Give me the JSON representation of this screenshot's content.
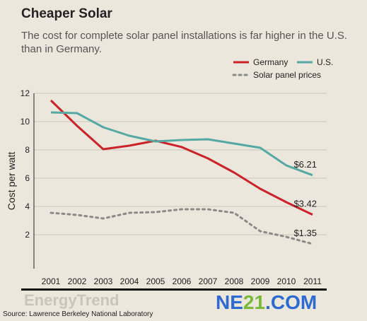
{
  "header": {
    "title": "Cheaper Solar",
    "subtitle": "The cost for complete solar panel installations is far higher in the U.S. than in Germany."
  },
  "source": "Source: Lawrence Berkeley National Laboratory",
  "watermarks": {
    "energytrend": "EnergyTrend",
    "ne21_prefix": "NE",
    "ne21_digits": "21",
    "ne21_suffix": ".COM"
  },
  "colors": {
    "germany": "#cc2229",
    "us": "#55a9a4",
    "panel": "#8a8a8a",
    "background": "#ebe7dc"
  },
  "chart_data": {
    "type": "line",
    "title": "Cheaper Solar",
    "ylabel": "Cost per watt",
    "xlabel": "",
    "x": [
      2001,
      2002,
      2003,
      2004,
      2005,
      2006,
      2007,
      2008,
      2009,
      2010,
      2011
    ],
    "x_tick_labels": [
      "2001",
      "2002",
      "2003",
      "2004",
      "2005",
      "2006",
      "2007",
      "2008",
      "2009",
      "2010",
      "2011"
    ],
    "ylim": [
      0,
      12
    ],
    "y_ticks": [
      2,
      4,
      6,
      8,
      10,
      12
    ],
    "y_tick_labels": [
      "2",
      "4",
      "6",
      "8",
      "10",
      "12"
    ],
    "grid": "horizontal",
    "legend_position": "top-right",
    "series": [
      {
        "name": "Germany",
        "style": "solid",
        "values": [
          11.5,
          9.7,
          8.05,
          8.3,
          8.65,
          8.2,
          7.4,
          6.4,
          5.25,
          4.3,
          3.42
        ],
        "end_label": "$3.42"
      },
      {
        "name": "U.S.",
        "style": "solid",
        "values": [
          10.65,
          10.6,
          9.6,
          9.0,
          8.6,
          8.7,
          8.75,
          8.45,
          8.15,
          6.9,
          6.21
        ],
        "end_label": "$6.21"
      },
      {
        "name": "Solar panel prices",
        "style": "dotted",
        "values": [
          3.55,
          3.4,
          3.15,
          3.55,
          3.6,
          3.8,
          3.8,
          3.55,
          2.25,
          1.85,
          1.35
        ],
        "end_label": "$1.35"
      }
    ]
  }
}
